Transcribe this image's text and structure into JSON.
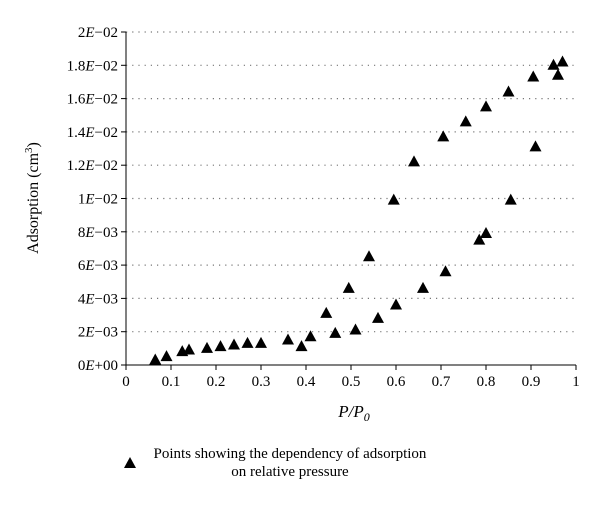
{
  "chart_data": {
    "type": "scatter",
    "xlabel": "P/P0",
    "ylabel": "Adsorption (cm3)",
    "xlim": [
      0,
      1
    ],
    "ylim": [
      0,
      0.02
    ],
    "x_ticks": [
      "0",
      "0.1",
      "0.2",
      "0.3",
      "0.4",
      "0.5",
      "0.6",
      "0.7",
      "0.8",
      "0.9",
      "1"
    ],
    "y_ticks": [
      "0E+00",
      "2E−03",
      "4E−03",
      "6E−03",
      "8E−03",
      "1E−02",
      "1.2E−02",
      "1.4E−02",
      "1.6E−02",
      "1.8E−02",
      "2E−02"
    ],
    "grid": "horizontal-dotted",
    "legend_position": "bottom",
    "series": [
      {
        "name": "Points showing the dependency of adsorption on relative pressure",
        "marker": "triangle",
        "color": "#000000",
        "x": [
          0.065,
          0.09,
          0.125,
          0.14,
          0.18,
          0.21,
          0.24,
          0.27,
          0.3,
          0.36,
          0.39,
          0.41,
          0.445,
          0.465,
          0.495,
          0.51,
          0.54,
          0.56,
          0.595,
          0.6,
          0.64,
          0.66,
          0.705,
          0.71,
          0.755,
          0.785,
          0.8,
          0.8,
          0.85,
          0.855,
          0.905,
          0.91,
          0.95,
          0.96,
          0.97
        ],
        "y": [
          0.0003,
          0.0005,
          0.0008,
          0.0009,
          0.001,
          0.0011,
          0.0012,
          0.0013,
          0.0013,
          0.0015,
          0.0011,
          0.0017,
          0.0031,
          0.0019,
          0.0046,
          0.0021,
          0.0065,
          0.0028,
          0.0099,
          0.0036,
          0.0122,
          0.0046,
          0.0137,
          0.0056,
          0.0146,
          0.0075,
          0.0155,
          0.0079,
          0.0164,
          0.0099,
          0.0173,
          0.0131,
          0.018,
          0.0174,
          0.0182
        ]
      }
    ]
  },
  "legend": {
    "text": "Points showing the dependency of adsorption on relative pressure"
  }
}
